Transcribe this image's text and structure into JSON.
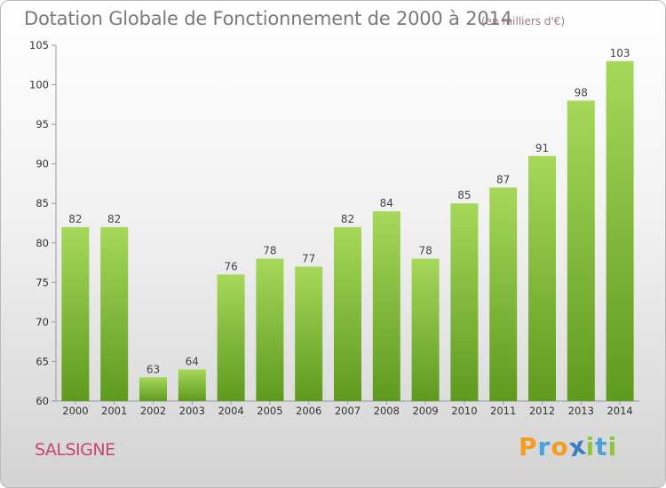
{
  "chart_data": {
    "type": "bar",
    "title": "Dotation Globale de Fonctionnement de 2000 à 2014",
    "unit": "(en milliers d'€)",
    "categories": [
      "2000",
      "2001",
      "2002",
      "2003",
      "2004",
      "2005",
      "2006",
      "2007",
      "2008",
      "2009",
      "2010",
      "2011",
      "2012",
      "2013",
      "2014"
    ],
    "values": [
      82,
      82,
      63,
      64,
      76,
      78,
      77,
      82,
      84,
      78,
      85,
      87,
      91,
      98,
      103
    ],
    "ylim": [
      60,
      105
    ],
    "yticks": [
      60,
      65,
      70,
      75,
      80,
      85,
      90,
      95,
      100,
      105
    ],
    "grid": false,
    "bar_color": "#8cc63f",
    "bar_color_dark": "#5e9a1e"
  },
  "commune": "SALSIGNE",
  "logo": {
    "text": "Proxiti",
    "letters": [
      "P",
      "r",
      "o",
      "x",
      "i",
      "t",
      "i"
    ],
    "colors": [
      "#f39c1f",
      "#4aa3d8",
      "#f39c1f",
      "#3a7fc1",
      "#8cc63f",
      "#4aa3d8",
      "#8cc63f"
    ]
  }
}
